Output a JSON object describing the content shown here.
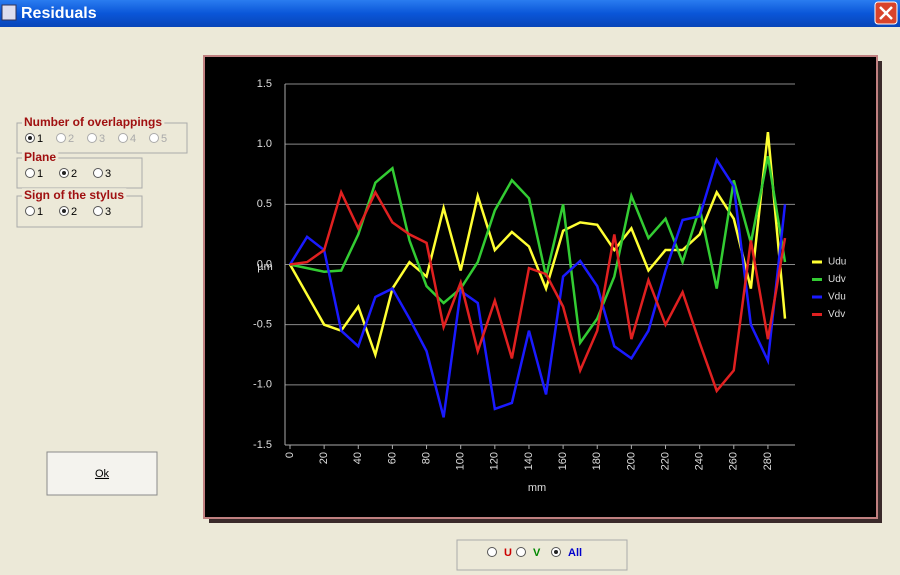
{
  "window": {
    "title": "Residuals"
  },
  "groups": [
    {
      "label": "Number of overlappings",
      "options": [
        "1",
        "2",
        "3",
        "4",
        "5"
      ],
      "selected": 0,
      "enabled": [
        true,
        false,
        false,
        false,
        false
      ]
    },
    {
      "label": "Plane",
      "options": [
        "1",
        "2",
        "3"
      ],
      "selected": 1,
      "enabled": [
        true,
        true,
        true
      ]
    },
    {
      "label": "Sign of the stylus",
      "options": [
        "1",
        "2",
        "3"
      ],
      "selected": 1,
      "enabled": [
        true,
        true,
        true
      ]
    }
  ],
  "button": {
    "label": "Ok"
  },
  "view_selector": {
    "options": [
      "U",
      "V",
      "All"
    ],
    "colors": [
      "#cc0000",
      "#008800",
      "#0000cc"
    ],
    "selected": 2
  },
  "chart_data": {
    "type": "line",
    "x_label": "mm",
    "y_label": "µm",
    "x": [
      0,
      10,
      20,
      30,
      40,
      50,
      60,
      70,
      80,
      90,
      100,
      110,
      120,
      130,
      140,
      150,
      160,
      170,
      180,
      190,
      200,
      210,
      220,
      230,
      240,
      250,
      260,
      270,
      280,
      290
    ],
    "series": [
      {
        "name": "Udu",
        "color": "#ffff33",
        "values": [
          0,
          -0.25,
          -0.5,
          -0.55,
          -0.35,
          -0.75,
          -0.2,
          0.02,
          -0.1,
          0.47,
          -0.05,
          0.57,
          0.12,
          0.27,
          0.15,
          -0.2,
          0.28,
          0.35,
          0.33,
          0.12,
          0.3,
          -0.05,
          0.12,
          0.12,
          0.25,
          0.6,
          0.38,
          -0.2,
          1.1,
          -0.45
        ]
      },
      {
        "name": "Udv",
        "color": "#33cc33",
        "values": [
          0,
          -0.03,
          -0.06,
          -0.05,
          0.25,
          0.68,
          0.8,
          0.2,
          -0.18,
          -0.32,
          -0.2,
          0.02,
          0.45,
          0.7,
          0.55,
          -0.1,
          0.5,
          -0.65,
          -0.45,
          -0.1,
          0.57,
          0.22,
          0.38,
          0.02,
          0.47,
          -0.2,
          0.7,
          0.18,
          0.9,
          0.02
        ]
      },
      {
        "name": "Vdu",
        "color": "#1a1aff",
        "values": [
          0,
          0.23,
          0.12,
          -0.55,
          -0.68,
          -0.27,
          -0.2,
          -0.45,
          -0.72,
          -1.27,
          -0.22,
          -0.32,
          -1.2,
          -1.15,
          -0.55,
          -1.08,
          -0.1,
          0.03,
          -0.18,
          -0.68,
          -0.78,
          -0.55,
          -0.05,
          0.37,
          0.4,
          0.87,
          0.65,
          -0.5,
          -0.8,
          0.5
        ]
      },
      {
        "name": "Vdv",
        "color": "#e02020",
        "values": [
          0,
          0.02,
          0.12,
          0.6,
          0.3,
          0.6,
          0.35,
          0.25,
          0.18,
          -0.52,
          -0.15,
          -0.72,
          -0.3,
          -0.78,
          -0.03,
          -0.08,
          -0.35,
          -0.88,
          -0.55,
          0.25,
          -0.62,
          -0.13,
          -0.5,
          -0.23,
          -0.65,
          -1.05,
          -0.88,
          0.2,
          -0.62,
          0.22
        ]
      }
    ],
    "xlim": [
      0,
      290
    ],
    "ylim": [
      -1.5,
      1.5
    ],
    "xticks": [
      0,
      20,
      40,
      60,
      80,
      100,
      120,
      140,
      160,
      180,
      200,
      220,
      240,
      260,
      280
    ],
    "yticks": [
      -1.5,
      {
        "value": -1,
        "label": "-1.0"
      },
      -0.5,
      {
        "value": 0,
        "label": "0.0"
      },
      0.5,
      {
        "value": 1,
        "label": "1.0"
      },
      1.5
    ],
    "grid": true
  }
}
